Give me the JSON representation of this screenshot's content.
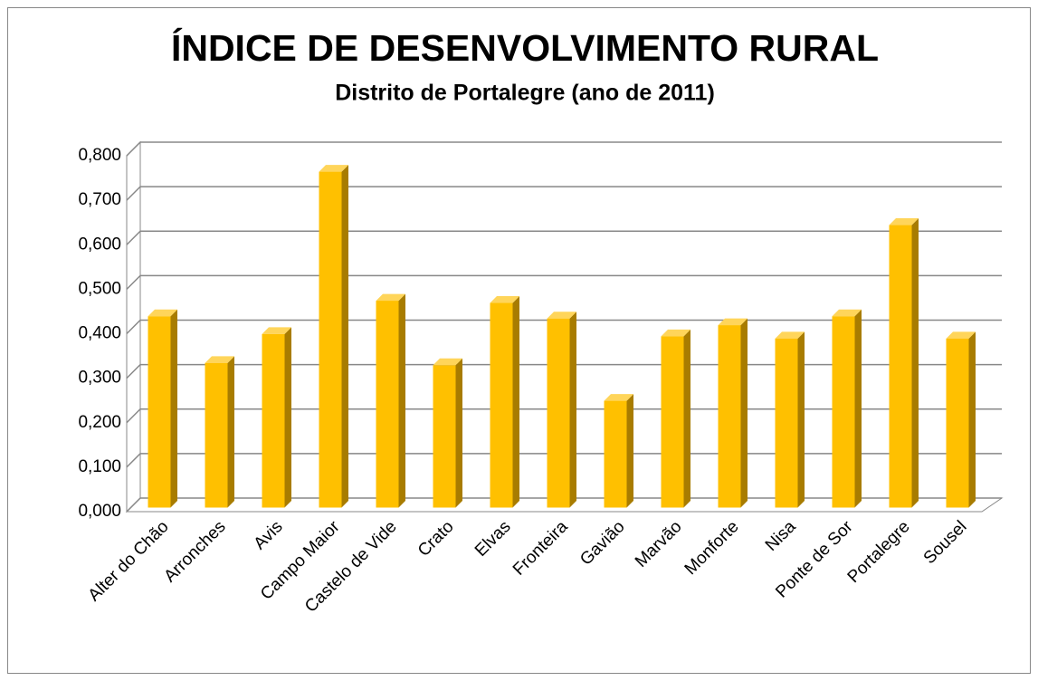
{
  "chart_data": {
    "type": "bar3d",
    "title": "ÍNDICE DE DESENVOLVIMENTO RURAL",
    "subtitle": "Distrito de Portalegre (ano de 2011)",
    "categories": [
      "Alter do Chão",
      "Arronches",
      "Avis",
      "Campo Maior",
      "Castelo de Vide",
      "Crato",
      "Elvas",
      "Fronteira",
      "Gavião",
      "Marvão",
      "Monforte",
      "Nisa",
      "Ponte de Sor",
      "Portalegre",
      "Sousel"
    ],
    "values": [
      0.43,
      0.325,
      0.39,
      0.755,
      0.465,
      0.32,
      0.46,
      0.425,
      0.24,
      0.385,
      0.41,
      0.38,
      0.43,
      0.635,
      0.38
    ],
    "color": "#FFC000",
    "ylim": [
      0,
      0.8
    ],
    "yticks": [
      {
        "value": 0,
        "label": "0,000"
      },
      {
        "value": 0.1,
        "label": "0,100"
      },
      {
        "value": 0.2,
        "label": "0,200"
      },
      {
        "value": 0.3,
        "label": "0,300"
      },
      {
        "value": 0.4,
        "label": "0,400"
      },
      {
        "value": 0.5,
        "label": "0,500"
      },
      {
        "value": 0.6,
        "label": "0,600"
      },
      {
        "value": 0.7,
        "label": "0,700"
      },
      {
        "value": 0.8,
        "label": "0,800"
      }
    ],
    "grid": true
  }
}
